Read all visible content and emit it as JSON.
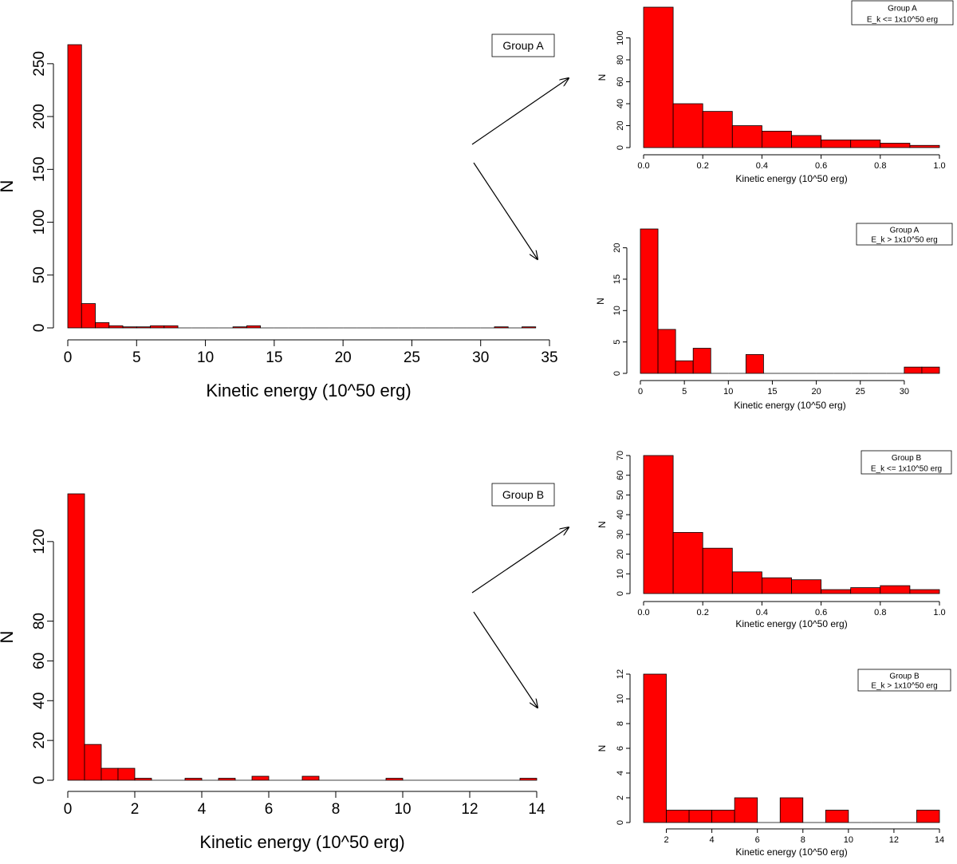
{
  "chart_data": [
    {
      "id": "main-group-a",
      "type": "bar",
      "title": "",
      "xlabel": "Kinetic energy (10^50 erg)",
      "ylabel": "N",
      "legend": [
        "Group A"
      ],
      "legend_position": "top-right",
      "xlim": [
        0,
        35
      ],
      "ylim": [
        0,
        268
      ],
      "xticks": [
        0,
        5,
        10,
        15,
        20,
        25,
        30,
        35
      ],
      "yticks": [
        0,
        50,
        100,
        150,
        200,
        250
      ],
      "bin_start": 0,
      "bin_width": 1,
      "values": [
        268,
        23,
        5,
        2,
        1,
        1,
        2,
        2,
        0,
        0,
        0,
        0,
        1,
        2,
        0,
        0,
        0,
        0,
        0,
        0,
        0,
        0,
        0,
        0,
        0,
        0,
        0,
        0,
        0,
        0,
        0,
        1,
        0,
        1
      ],
      "bar_color": "#ff0000"
    },
    {
      "id": "inset-group-a-low",
      "type": "bar",
      "title": "",
      "xlabel": "Kinetic energy (10^50 erg)",
      "ylabel": "N",
      "legend": [
        "Group A",
        "E_k <= 1x10^50 erg"
      ],
      "legend_position": "top-right",
      "xlim": [
        0,
        1
      ],
      "ylim": [
        0,
        128
      ],
      "xticks": [
        0.0,
        0.2,
        0.4,
        0.6,
        0.8,
        1.0
      ],
      "xtick_labels": [
        "0.0",
        "0.2",
        "0.4",
        "0.6",
        "0.8",
        "1.0"
      ],
      "yticks": [
        0,
        20,
        40,
        60,
        80,
        100
      ],
      "bin_start": 0,
      "bin_width": 0.1,
      "values": [
        128,
        40,
        33,
        20,
        15,
        11,
        7,
        7,
        4,
        2
      ],
      "bar_color": "#ff0000"
    },
    {
      "id": "inset-group-a-high",
      "type": "bar",
      "title": "",
      "xlabel": "Kinetic energy (10^50 erg)",
      "ylabel": "N",
      "legend": [
        "Group A",
        "E_k > 1x10^50 erg"
      ],
      "legend_position": "top-right",
      "xlim": [
        0,
        34
      ],
      "ylim": [
        0,
        23
      ],
      "xticks": [
        0,
        5,
        10,
        15,
        20,
        25,
        30
      ],
      "yticks": [
        0,
        5,
        10,
        15,
        20
      ],
      "bin_start": 0,
      "bin_width": 2,
      "values": [
        23,
        7,
        2,
        4,
        0,
        0,
        3,
        0,
        0,
        0,
        0,
        0,
        0,
        0,
        0,
        1,
        1
      ],
      "bar_color": "#ff0000"
    },
    {
      "id": "main-group-b",
      "type": "bar",
      "title": "",
      "xlabel": "Kinetic energy (10^50 erg)",
      "ylabel": "N",
      "legend": [
        "Group B"
      ],
      "legend_position": "top-right",
      "xlim": [
        0,
        14
      ],
      "ylim": [
        0,
        144
      ],
      "xticks": [
        0,
        2,
        4,
        6,
        8,
        10,
        12,
        14
      ],
      "yticks": [
        0,
        20,
        40,
        60,
        80,
        120
      ],
      "bin_start": 0,
      "bin_width": 0.5,
      "values": [
        144,
        18,
        6,
        6,
        1,
        0,
        0,
        1,
        0,
        1,
        0,
        2,
        0,
        0,
        2,
        0,
        0,
        0,
        0,
        1,
        0,
        0,
        0,
        0,
        0,
        0,
        0,
        1
      ],
      "bar_color": "#ff0000"
    },
    {
      "id": "inset-group-b-low",
      "type": "bar",
      "title": "",
      "xlabel": "Kinetic energy (10^50 erg)",
      "ylabel": "N",
      "legend": [
        "Group B",
        "E_k <= 1x10^50 erg"
      ],
      "legend_position": "top-right",
      "xlim": [
        0,
        1
      ],
      "ylim": [
        0,
        70
      ],
      "xticks": [
        0.0,
        0.2,
        0.4,
        0.6,
        0.8,
        1.0
      ],
      "xtick_labels": [
        "0.0",
        "0.2",
        "0.4",
        "0.6",
        "0.8",
        "1.0"
      ],
      "yticks": [
        0,
        10,
        20,
        30,
        40,
        50,
        60,
        70
      ],
      "bin_start": 0,
      "bin_width": 0.1,
      "values": [
        70,
        31,
        23,
        11,
        8,
        7,
        2,
        3,
        4,
        2
      ],
      "bar_color": "#ff0000"
    },
    {
      "id": "inset-group-b-high",
      "type": "bar",
      "title": "",
      "xlabel": "Kinetic energy (10^50 erg)",
      "ylabel": "N",
      "legend": [
        "Group B",
        "E_k > 1x10^50 erg"
      ],
      "legend_position": "top-right",
      "xlim": [
        1,
        14
      ],
      "ylim": [
        0,
        12
      ],
      "xticks": [
        2,
        4,
        6,
        8,
        10,
        12,
        14
      ],
      "yticks": [
        0,
        2,
        4,
        6,
        8,
        10,
        12
      ],
      "bin_start": 1,
      "bin_width": 1,
      "values": [
        12,
        1,
        1,
        1,
        2,
        0,
        2,
        0,
        1,
        0,
        0,
        0,
        1
      ],
      "bar_color": "#ff0000"
    }
  ]
}
